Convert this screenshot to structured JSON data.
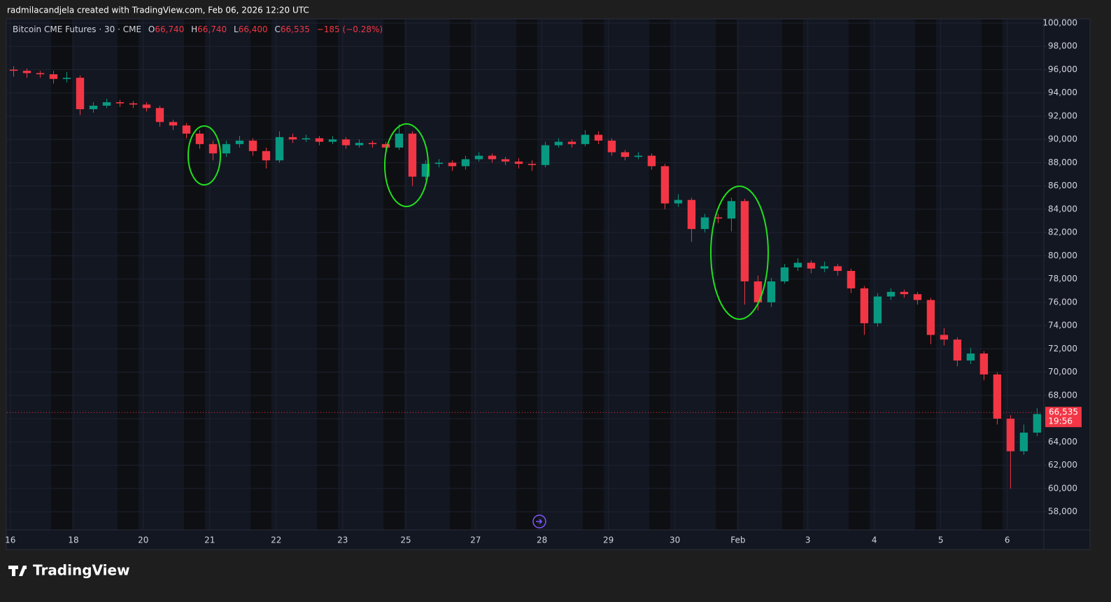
{
  "header": {
    "attribution": "radmilacandjela created with TradingView.com, Feb 06, 2026 12:20 UTC"
  },
  "footer": {
    "logo": "TradingView"
  },
  "chart_data": {
    "type": "candlestick",
    "title": "Bitcoin CME Futures · 30 · CME",
    "legend": {
      "o_label": "O",
      "o": "66,740",
      "h_label": "H",
      "h": "66,740",
      "l_label": "L",
      "l": "66,400",
      "c_label": "C",
      "c": "66,535",
      "change": "−185 (−0.28%)"
    },
    "up_color": "#089981",
    "down_color": "#f23645",
    "x": [
      0.1,
      0.3,
      0.5,
      0.7,
      0.9,
      1.1,
      1.3,
      1.5,
      1.7,
      1.9,
      2.1,
      2.3,
      2.5,
      2.7,
      2.9,
      3.1,
      3.3,
      3.5,
      3.7,
      3.9,
      4.1,
      4.3,
      4.5,
      4.7,
      4.9,
      5.1,
      5.3,
      5.5,
      5.7,
      5.9,
      6.1,
      6.3,
      6.5,
      6.7,
      6.9,
      7.1,
      7.3,
      7.5,
      7.7,
      7.9,
      8.1,
      8.3,
      8.5,
      8.7,
      8.9,
      9.1,
      9.3,
      9.5,
      9.7,
      9.9,
      10.1,
      10.3,
      10.5,
      10.7,
      10.9,
      11.1,
      11.3,
      11.5,
      11.7,
      11.9,
      12.1,
      12.3,
      12.5,
      12.7,
      12.9,
      13.1,
      13.3,
      13.5,
      13.7,
      13.9,
      14.1,
      14.3,
      14.5,
      14.7,
      14.9,
      15.1,
      15.3,
      15.5
    ],
    "open": [
      96000,
      95900,
      95700,
      95600,
      95200,
      95300,
      92600,
      92900,
      93200,
      93100,
      93000,
      92700,
      91500,
      91200,
      90500,
      89600,
      88800,
      89600,
      89900,
      89000,
      88200,
      90200,
      90000,
      90100,
      89800,
      90000,
      89500,
      89700,
      89600,
      89300,
      90500,
      86800,
      87900,
      88000,
      87700,
      88300,
      88600,
      88300,
      88100,
      87900,
      87800,
      89500,
      89800,
      89600,
      90400,
      89900,
      88900,
      88500,
      88600,
      87700,
      84500,
      84800,
      82300,
      83300,
      83200,
      84700,
      77800,
      76000,
      77800,
      79000,
      79400,
      78900,
      79100,
      78700,
      77200,
      74200,
      76500,
      76900,
      76700,
      76200,
      73200,
      72800,
      71000,
      71600,
      69800,
      66000,
      63200,
      64800
    ],
    "high": [
      96300,
      96100,
      95900,
      95900,
      95800,
      95500,
      93200,
      93500,
      93400,
      93300,
      93200,
      92900,
      91700,
      91400,
      90800,
      89900,
      89900,
      90300,
      90100,
      89300,
      90700,
      90500,
      90400,
      90300,
      90300,
      90200,
      90000,
      89900,
      89800,
      91300,
      90700,
      88200,
      88300,
      88200,
      88600,
      88900,
      88800,
      88500,
      88400,
      88200,
      89800,
      90100,
      90000,
      90800,
      90700,
      90100,
      89100,
      88900,
      88800,
      87900,
      85300,
      85000,
      83600,
      83600,
      85000,
      84900,
      78300,
      78100,
      79300,
      79800,
      79600,
      79500,
      79300,
      78900,
      77400,
      76800,
      77200,
      77100,
      76900,
      76400,
      73800,
      73000,
      72100,
      71800,
      70000,
      66300,
      65500,
      66900
    ],
    "low": [
      95400,
      95300,
      95300,
      94800,
      94900,
      92100,
      92300,
      92700,
      92800,
      92700,
      92400,
      91100,
      90800,
      90100,
      89200,
      88200,
      88500,
      89300,
      88600,
      87500,
      88000,
      89700,
      89800,
      89500,
      89600,
      89200,
      89300,
      89300,
      89000,
      89100,
      86000,
      86500,
      87600,
      87300,
      87400,
      88100,
      88000,
      87800,
      87500,
      87300,
      87600,
      89300,
      89300,
      89400,
      89600,
      88600,
      88200,
      88300,
      87400,
      84000,
      84200,
      81200,
      82000,
      82800,
      82100,
      75800,
      75300,
      75600,
      77600,
      78700,
      78500,
      78600,
      78300,
      76800,
      73200,
      73900,
      76200,
      76400,
      75800,
      72400,
      72300,
      70500,
      70700,
      69300,
      65500,
      60000,
      62900,
      64500
    ],
    "close": [
      95900,
      95700,
      95600,
      95200,
      95300,
      92600,
      92900,
      93200,
      93100,
      93000,
      92700,
      91500,
      91200,
      90500,
      89600,
      88800,
      89600,
      89900,
      89000,
      88200,
      90200,
      90000,
      90100,
      89800,
      90000,
      89500,
      89700,
      89600,
      89300,
      90500,
      86800,
      87900,
      88000,
      87700,
      88300,
      88600,
      88300,
      88100,
      87900,
      87800,
      89500,
      89800,
      89600,
      90400,
      89900,
      88900,
      88500,
      88600,
      87700,
      84500,
      84800,
      82300,
      83300,
      83200,
      84700,
      77800,
      76000,
      77800,
      79000,
      79400,
      78900,
      79100,
      78700,
      77200,
      74200,
      76500,
      76900,
      76700,
      76200,
      73200,
      72800,
      71000,
      71600,
      69800,
      66000,
      63200,
      64800,
      66400
    ],
    "xlim": [
      0,
      15.58
    ],
    "xticks": [
      {
        "value": 0.05,
        "label": "16"
      },
      {
        "value": 1.0,
        "label": "18"
      },
      {
        "value": 2.05,
        "label": "20"
      },
      {
        "value": 3.05,
        "label": "21"
      },
      {
        "value": 4.05,
        "label": "22"
      },
      {
        "value": 5.05,
        "label": "23"
      },
      {
        "value": 6.0,
        "label": "25"
      },
      {
        "value": 7.05,
        "label": "27"
      },
      {
        "value": 8.05,
        "label": "28"
      },
      {
        "value": 9.05,
        "label": "29"
      },
      {
        "value": 10.05,
        "label": "30"
      },
      {
        "value": 11.0,
        "label": "Feb"
      },
      {
        "value": 12.05,
        "label": "3"
      },
      {
        "value": 13.05,
        "label": "4"
      },
      {
        "value": 14.05,
        "label": "5"
      },
      {
        "value": 15.05,
        "label": "6"
      }
    ],
    "ylim": [
      56440,
      100360
    ],
    "yticks": [
      {
        "value": 58000,
        "label": "58,000"
      },
      {
        "value": 60000,
        "label": "60,000"
      },
      {
        "value": 62000,
        "label": "62,000"
      },
      {
        "value": 64000,
        "label": "64,000"
      },
      {
        "value": 66000,
        "label": "66,000"
      },
      {
        "value": 68000,
        "label": "68,000"
      },
      {
        "value": 70000,
        "label": "70,000"
      },
      {
        "value": 72000,
        "label": "72,000"
      },
      {
        "value": 74000,
        "label": "74,000"
      },
      {
        "value": 76000,
        "label": "76,000"
      },
      {
        "value": 78000,
        "label": "78,000"
      },
      {
        "value": 80000,
        "label": "80,000"
      },
      {
        "value": 82000,
        "label": "82,000"
      },
      {
        "value": 84000,
        "label": "84,000"
      },
      {
        "value": 86000,
        "label": "86,000"
      },
      {
        "value": 88000,
        "label": "88,000"
      },
      {
        "value": 90000,
        "label": "90,000"
      },
      {
        "value": 92000,
        "label": "92,000"
      },
      {
        "value": 94000,
        "label": "94,000"
      },
      {
        "value": 96000,
        "label": "96,000"
      },
      {
        "value": 98000,
        "label": "98,000"
      },
      {
        "value": 100000,
        "label": "100,000"
      }
    ],
    "grid": true,
    "last_price": {
      "value": 66535,
      "label": "66,535",
      "countdown": "19:56",
      "color": "#f23645"
    }
  }
}
